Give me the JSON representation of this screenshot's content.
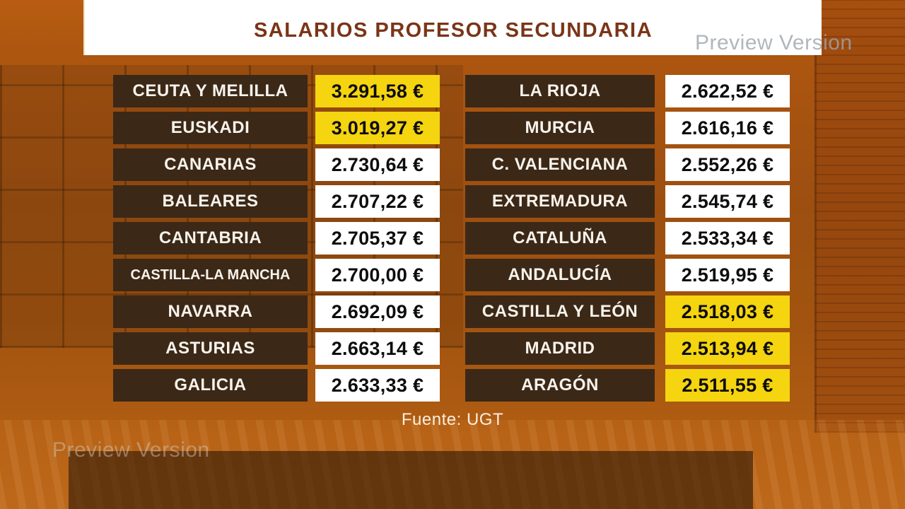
{
  "title": "SALARIOS PROFESOR SECUNDARIA",
  "watermark": {
    "text": "Preview Version"
  },
  "footer": {
    "source": "Fuente: UGT"
  },
  "colors": {
    "highlight_yellow": "#F5D410",
    "value_box_white": "#FFFFFF",
    "label_box_brown": "#3C2817",
    "title_brown": "#7A3517",
    "background_orange": "#A1530F"
  },
  "chart_data": {
    "type": "table",
    "title": "SALARIOS PROFESOR SECUNDARIA",
    "source": "Fuente: UGT",
    "unit": "€",
    "left_column": [
      {
        "label": "CEUTA Y MELILLA",
        "value": "3.291,58 €",
        "value_numeric": 3291.58,
        "highlight": true
      },
      {
        "label": "EUSKADI",
        "value": "3.019,27 €",
        "value_numeric": 3019.27,
        "highlight": true
      },
      {
        "label": "CANARIAS",
        "value": "2.730,64 €",
        "value_numeric": 2730.64,
        "highlight": false
      },
      {
        "label": "BALEARES",
        "value": "2.707,22 €",
        "value_numeric": 2707.22,
        "highlight": false
      },
      {
        "label": "CANTABRIA",
        "value": "2.705,37 €",
        "value_numeric": 2705.37,
        "highlight": false
      },
      {
        "label": "CASTILLA-LA MANCHA",
        "value": "2.700,00 €",
        "value_numeric": 2700.0,
        "highlight": false,
        "small": true
      },
      {
        "label": "NAVARRA",
        "value": "2.692,09 €",
        "value_numeric": 2692.09,
        "highlight": false
      },
      {
        "label": "ASTURIAS",
        "value": "2.663,14 €",
        "value_numeric": 2663.14,
        "highlight": false
      },
      {
        "label": "GALICIA",
        "value": "2.633,33 €",
        "value_numeric": 2633.33,
        "highlight": false
      }
    ],
    "right_column": [
      {
        "label": "LA RIOJA",
        "value": "2.622,52 €",
        "value_numeric": 2622.52,
        "highlight": false
      },
      {
        "label": "MURCIA",
        "value": "2.616,16 €",
        "value_numeric": 2616.16,
        "highlight": false
      },
      {
        "label": "C. VALENCIANA",
        "value": "2.552,26 €",
        "value_numeric": 2552.26,
        "highlight": false
      },
      {
        "label": "EXTREMADURA",
        "value": "2.545,74 €",
        "value_numeric": 2545.74,
        "highlight": false
      },
      {
        "label": "CATALUÑA",
        "value": "2.533,34 €",
        "value_numeric": 2533.34,
        "highlight": false
      },
      {
        "label": "ANDALUCÍA",
        "value": "2.519,95 €",
        "value_numeric": 2519.95,
        "highlight": false
      },
      {
        "label": "CASTILLA Y LEÓN",
        "value": "2.518,03 €",
        "value_numeric": 2518.03,
        "highlight": true
      },
      {
        "label": "MADRID",
        "value": "2.513,94 €",
        "value_numeric": 2513.94,
        "highlight": true
      },
      {
        "label": "ARAGÓN",
        "value": "2.511,55 €",
        "value_numeric": 2511.55,
        "highlight": true
      }
    ]
  }
}
